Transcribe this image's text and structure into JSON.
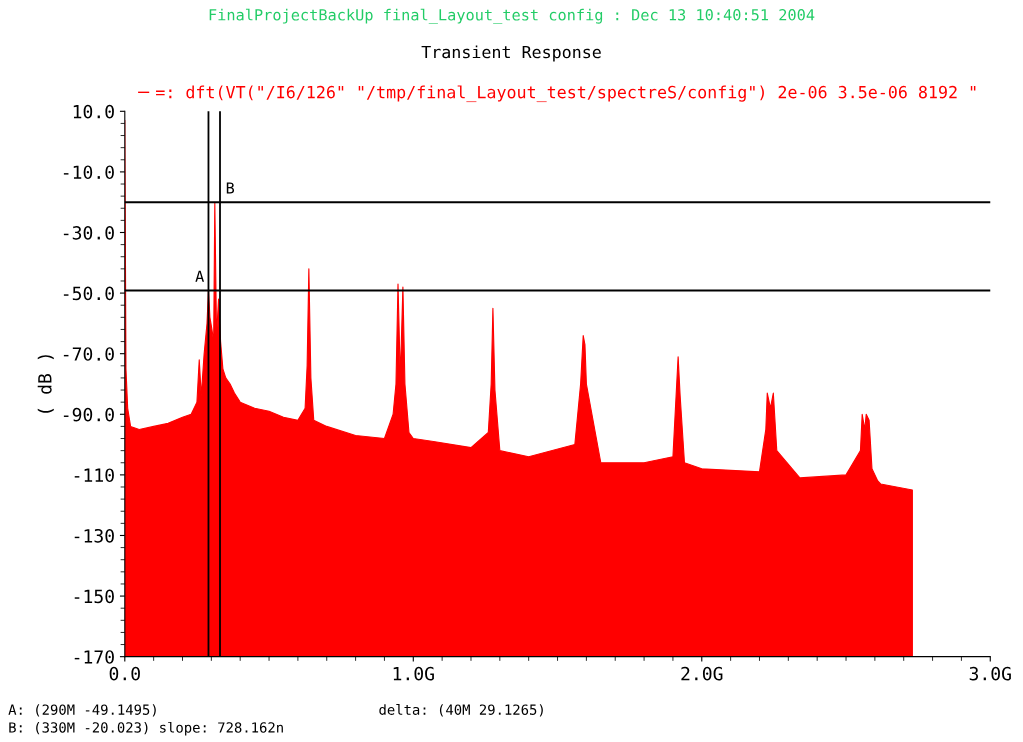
{
  "chart_data": {
    "type": "area",
    "subtitle": "FinalProjectBackUp final_Layout_test config : Dec 13 10:40:51 2004",
    "title": "Transient Response",
    "ylabel": "( dB )",
    "x": [
      0,
      0,
      0.004,
      0.01,
      0.02,
      0.05,
      0.1,
      0.15,
      0.2,
      0.23,
      0.25,
      0.258,
      0.265,
      0.275,
      0.285,
      0.29,
      0.295,
      0.302,
      0.308,
      0.312,
      0.318,
      0.325,
      0.332,
      0.34,
      0.35,
      0.365,
      0.38,
      0.4,
      0.45,
      0.5,
      0.55,
      0.6,
      0.625,
      0.632,
      0.638,
      0.645,
      0.655,
      0.7,
      0.8,
      0.9,
      0.93,
      0.94,
      0.947,
      0.955,
      0.964,
      0.971,
      0.985,
      1.0,
      1.07,
      1.2,
      1.26,
      1.27,
      1.276,
      1.283,
      1.3,
      1.4,
      1.56,
      1.58,
      1.589,
      1.595,
      1.6,
      1.65,
      1.8,
      1.9,
      1.912,
      1.918,
      1.925,
      1.94,
      2.0,
      2.2,
      2.222,
      2.227,
      2.238,
      2.248,
      2.26,
      2.34,
      2.5,
      2.55,
      2.556,
      2.565,
      2.57,
      2.58,
      2.59,
      2.61,
      2.62,
      2.73,
      2.73
    ],
    "series": [
      {
        "name": "=: dft(VT(\"/I6/126\" \"/tmp/final_Layout_test/spectreS/config\") 2e-06 3.5e-06 8192 \"",
        "color": "#ff0000",
        "values": [
          -170,
          7,
          -75,
          -88,
          -94,
          -95,
          -94,
          -93,
          -91,
          -90,
          -86,
          -72,
          -84,
          -70,
          -60,
          -49,
          -58,
          -62,
          -66,
          -20,
          -64,
          -52,
          -66,
          -75,
          -78,
          -80,
          -83,
          -86,
          -88,
          -89,
          -91,
          -92,
          -88,
          -74,
          -42,
          -78,
          -92,
          -94,
          -97,
          -98,
          -90,
          -80,
          -47,
          -78,
          -48,
          -80,
          -96,
          -98,
          -99,
          -101,
          -96,
          -80,
          -55,
          -82,
          -102,
          -104,
          -100,
          -80,
          -64,
          -67,
          -80,
          -106,
          -106,
          -104,
          -82,
          -71,
          -84,
          -106,
          -108,
          -109,
          -95,
          -83,
          -88,
          -83,
          -102,
          -111,
          -110,
          -102,
          -90,
          -95,
          -90,
          -92,
          -108,
          -112,
          -113,
          -115,
          -170
        ]
      }
    ],
    "xlim": [
      0,
      3
    ],
    "xticks": [
      {
        "value": 0,
        "label": "0.0"
      },
      {
        "value": 1,
        "label": "1.0G"
      },
      {
        "value": 2,
        "label": "2.0G"
      },
      {
        "value": 3,
        "label": "3.0G"
      }
    ],
    "ylim": [
      -170,
      10
    ],
    "yticks": [
      {
        "value": 10,
        "label": "10.0"
      },
      {
        "value": -10,
        "label": "-10.0"
      },
      {
        "value": -30,
        "label": "-30.0"
      },
      {
        "value": -50,
        "label": "-50.0"
      },
      {
        "value": -70,
        "label": "-70.0"
      },
      {
        "value": -90,
        "label": "-90.0"
      },
      {
        "value": -110,
        "label": "-110"
      },
      {
        "value": -130,
        "label": "-130"
      },
      {
        "value": -150,
        "label": "-150"
      },
      {
        "value": -170,
        "label": "-170"
      }
    ],
    "ref_lines": [
      {
        "axis": "y",
        "value": -20.023,
        "color": "#000000"
      },
      {
        "axis": "y",
        "value": -49.1495,
        "color": "#000000"
      },
      {
        "axis": "x",
        "value": 0.29,
        "color": "#000000"
      },
      {
        "axis": "x",
        "value": 0.33,
        "color": "#000000"
      }
    ],
    "annotations": [
      {
        "text": "A",
        "x": 0.29,
        "y": -49.1495
      },
      {
        "text": "B",
        "x": 0.33,
        "y": -20.023
      },
      "A: (290M -49.1495)",
      "delta: (40M 29.1265)",
      "B: (330M -20.023) slope: 728.162n"
    ],
    "legend": "top",
    "grid": false
  }
}
